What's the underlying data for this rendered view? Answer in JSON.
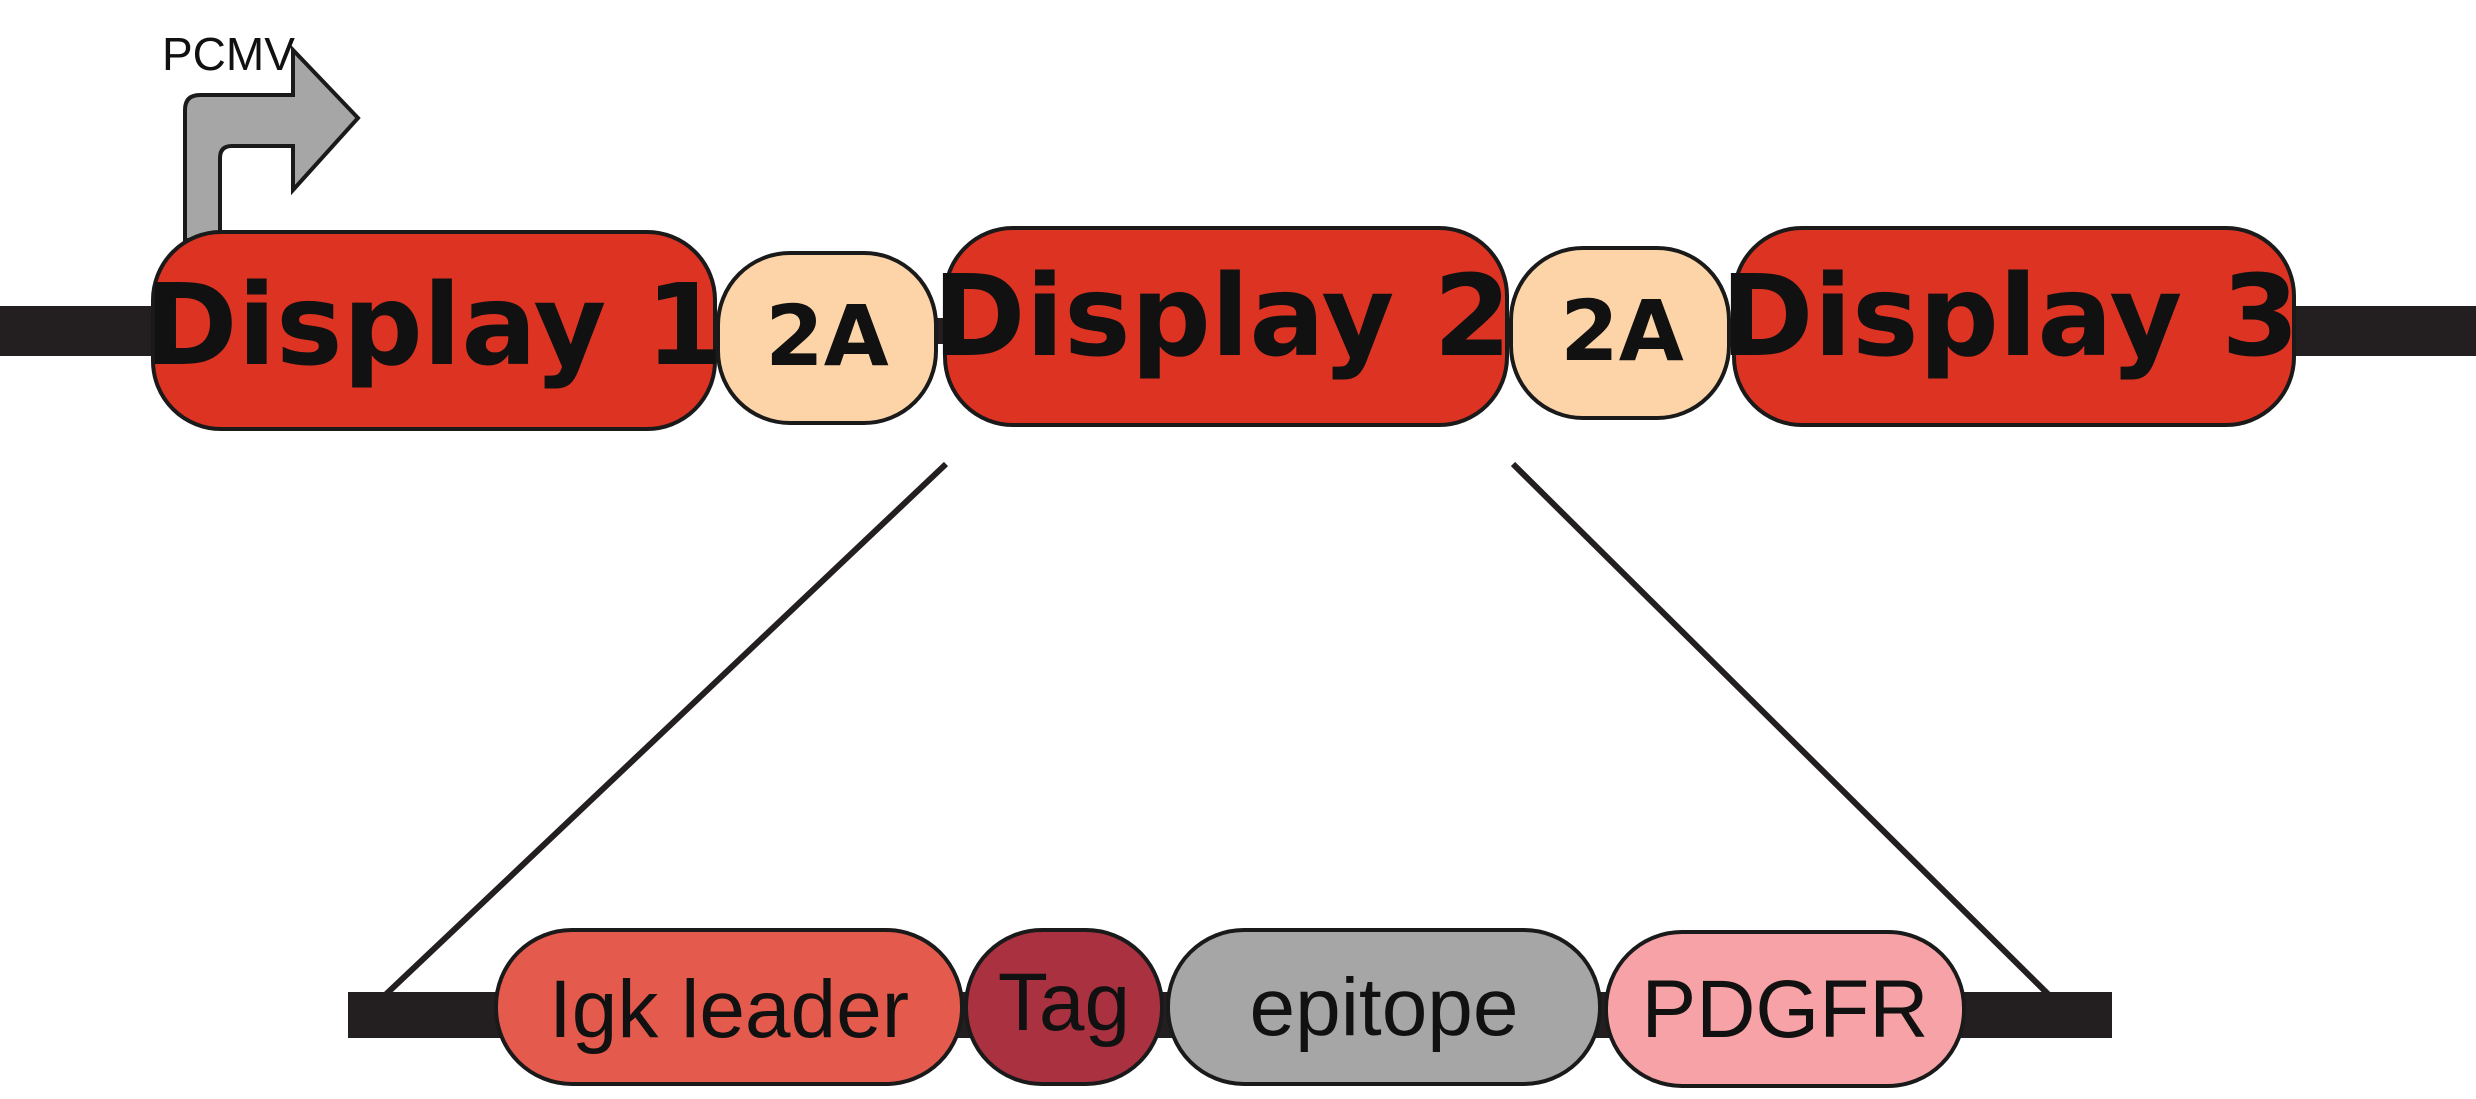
{
  "promoter": {
    "label": "PCMV",
    "fill": "#a6a6a6"
  },
  "top_construct": {
    "segments": [
      {
        "label": "Display 1",
        "kind": "display",
        "fill": "#dc3322"
      },
      {
        "label": "2A",
        "kind": "linker",
        "fill": "#fcd4a8"
      },
      {
        "label": "Display 2",
        "kind": "display",
        "fill": "#dc3322"
      },
      {
        "label": "2A",
        "kind": "linker",
        "fill": "#fcd4a8"
      },
      {
        "label": "Display 3",
        "kind": "display",
        "fill": "#dc3322"
      }
    ]
  },
  "expanded_construct": {
    "segments": [
      {
        "label": "Igk leader",
        "fill": "#e45a4d"
      },
      {
        "label": "Tag",
        "fill": "#a93140"
      },
      {
        "label": "epitope",
        "fill": "#a6a6a6"
      },
      {
        "label": "PDGFR",
        "fill": "#f6a2a6"
      }
    ]
  },
  "colors": {
    "backbone": "#231f20",
    "outline": "#1a1a1a"
  }
}
